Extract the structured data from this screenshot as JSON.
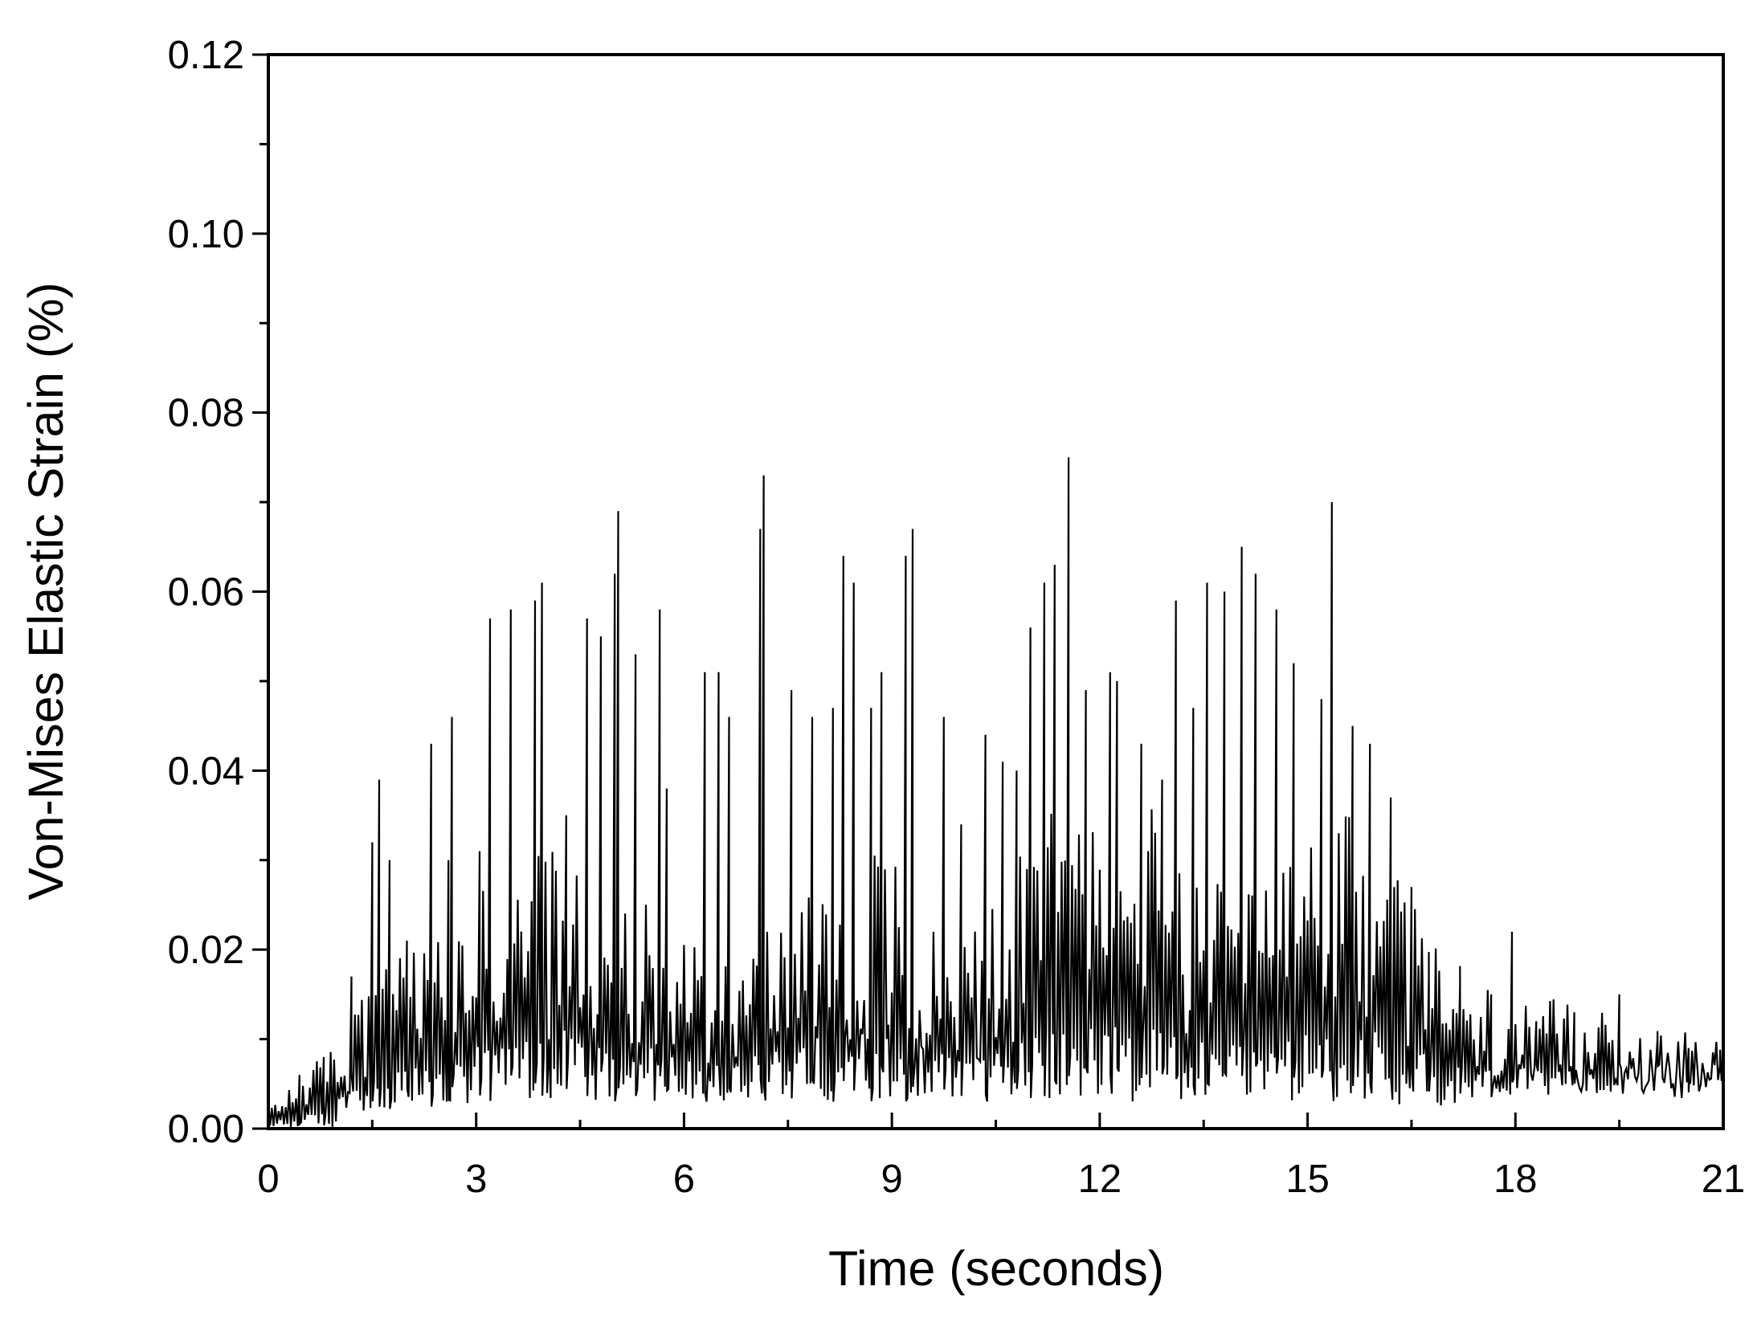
{
  "chart_data": {
    "type": "line",
    "title": "",
    "xlabel": "Time (seconds)",
    "ylabel": "Von-Mises Elastic Strain (%)",
    "xlim": [
      0,
      21
    ],
    "ylim": [
      0,
      0.12
    ],
    "x_ticks": [
      0,
      3,
      6,
      9,
      12,
      15,
      18,
      21
    ],
    "x_tick_labels": [
      "0",
      "3",
      "6",
      "9",
      "12",
      "15",
      "18",
      "21"
    ],
    "y_ticks": [
      0,
      0.02,
      0.04,
      0.06,
      0.08,
      0.1,
      0.12
    ],
    "y_tick_labels": [
      "0.00",
      "0.02",
      "0.04",
      "0.06",
      "0.08",
      "0.10",
      "0.12"
    ],
    "x_minor_step": 1.5,
    "y_minor_step": 0.01,
    "grid": false,
    "legend": "none",
    "line_color": "#000000",
    "sample_step": 0.05,
    "peaks": [
      [
        0.45,
        0.006
      ],
      [
        0.8,
        0.008
      ],
      [
        1.2,
        0.017
      ],
      [
        1.5,
        0.032
      ],
      [
        1.6,
        0.039
      ],
      [
        1.75,
        0.03
      ],
      [
        2.0,
        0.021
      ],
      [
        2.35,
        0.043
      ],
      [
        2.6,
        0.03
      ],
      [
        2.65,
        0.046
      ],
      [
        3.05,
        0.031
      ],
      [
        3.2,
        0.057
      ],
      [
        3.5,
        0.058
      ],
      [
        3.85,
        0.059
      ],
      [
        3.95,
        0.061
      ],
      [
        4.3,
        0.035
      ],
      [
        4.6,
        0.057
      ],
      [
        4.8,
        0.055
      ],
      [
        5.0,
        0.062
      ],
      [
        5.05,
        0.069
      ],
      [
        5.3,
        0.053
      ],
      [
        5.65,
        0.058
      ],
      [
        5.75,
        0.038
      ],
      [
        6.3,
        0.051
      ],
      [
        6.5,
        0.051
      ],
      [
        6.65,
        0.046
      ],
      [
        7.1,
        0.067
      ],
      [
        7.15,
        0.073
      ],
      [
        7.55,
        0.049
      ],
      [
        7.85,
        0.046
      ],
      [
        8.15,
        0.047
      ],
      [
        8.3,
        0.064
      ],
      [
        8.45,
        0.061
      ],
      [
        8.7,
        0.047
      ],
      [
        8.85,
        0.051
      ],
      [
        9.2,
        0.064
      ],
      [
        9.3,
        0.067
      ],
      [
        9.75,
        0.046
      ],
      [
        10.0,
        0.034
      ],
      [
        10.35,
        0.044
      ],
      [
        10.6,
        0.041
      ],
      [
        10.8,
        0.04
      ],
      [
        11.0,
        0.056
      ],
      [
        11.2,
        0.061
      ],
      [
        11.35,
        0.063
      ],
      [
        11.55,
        0.075
      ],
      [
        11.8,
        0.049
      ],
      [
        12.15,
        0.051
      ],
      [
        12.25,
        0.05
      ],
      [
        12.6,
        0.043
      ],
      [
        12.9,
        0.039
      ],
      [
        13.1,
        0.059
      ],
      [
        13.35,
        0.047
      ],
      [
        13.55,
        0.061
      ],
      [
        13.8,
        0.06
      ],
      [
        14.05,
        0.065
      ],
      [
        14.25,
        0.062
      ],
      [
        14.55,
        0.058
      ],
      [
        14.8,
        0.052
      ],
      [
        15.2,
        0.048
      ],
      [
        15.35,
        0.07
      ],
      [
        15.65,
        0.045
      ],
      [
        15.9,
        0.043
      ],
      [
        16.2,
        0.037
      ],
      [
        16.5,
        0.027
      ],
      [
        16.75,
        0.017
      ],
      [
        17.2,
        0.016
      ],
      [
        17.65,
        0.015
      ],
      [
        17.95,
        0.022
      ],
      [
        18.3,
        0.012
      ],
      [
        18.85,
        0.013
      ],
      [
        19.5,
        0.015
      ],
      [
        20.05,
        0.01
      ],
      [
        20.5,
        0.009
      ],
      [
        20.95,
        0.007
      ]
    ]
  }
}
